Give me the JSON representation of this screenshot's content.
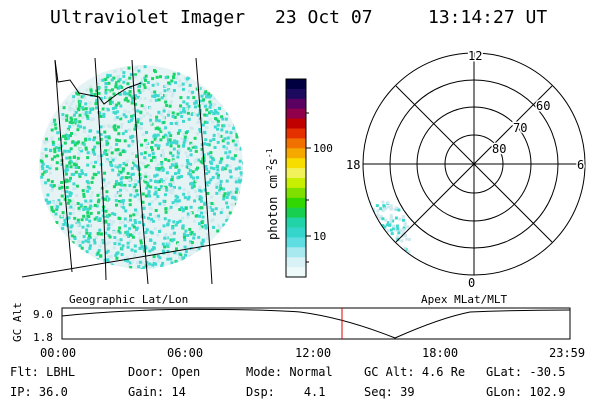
{
  "header": {
    "instrument": "Ultraviolet Imager",
    "date": "23 Oct 07",
    "time": "13:14:27 UT"
  },
  "geo_panel": {
    "caption": "Geographic Lat/Lon"
  },
  "colorbar": {
    "unit_label": "photon cm",
    "ticks": [
      "100",
      "10"
    ]
  },
  "polar_panel": {
    "caption": "Apex MLat/MLT",
    "mlt_labels": {
      "top": "12",
      "left": "18",
      "right": "6",
      "bottom": "0"
    },
    "lat_labels": [
      "60",
      "70",
      "80"
    ]
  },
  "altitude_plot": {
    "axis_label": "GC Alt",
    "y_ticks": [
      "9.0",
      "1.8"
    ],
    "x_ticks": [
      "00:00",
      "06:00",
      "12:00",
      "18:00",
      "23:59"
    ],
    "marker_time": "13:14:27",
    "marker_color": "#e00000"
  },
  "status": {
    "flt": {
      "label": "Flt:",
      "value": "LBHL"
    },
    "ip": {
      "label": "IP:",
      "value": "36.0"
    },
    "door": {
      "label": "Door:",
      "value": "Open"
    },
    "gain": {
      "label": "Gain:",
      "value": "14"
    },
    "mode": {
      "label": "Mode:",
      "value": "Normal"
    },
    "dsp": {
      "label": "Dsp:",
      "value": "4.1"
    },
    "gc_alt": {
      "label": "GC Alt:",
      "value": "4.6 Re"
    },
    "seq": {
      "label": "Seq:",
      "value": "39"
    },
    "glat": {
      "label": "GLat:",
      "value": "-30.5"
    },
    "glon": {
      "label": "GLon:",
      "value": "102.9"
    }
  },
  "colors": {
    "emission_green": "#19d66a",
    "emission_cyan": "#3fd9d0",
    "emission_pale": "#cfe9ee",
    "marker": "#e00000"
  }
}
